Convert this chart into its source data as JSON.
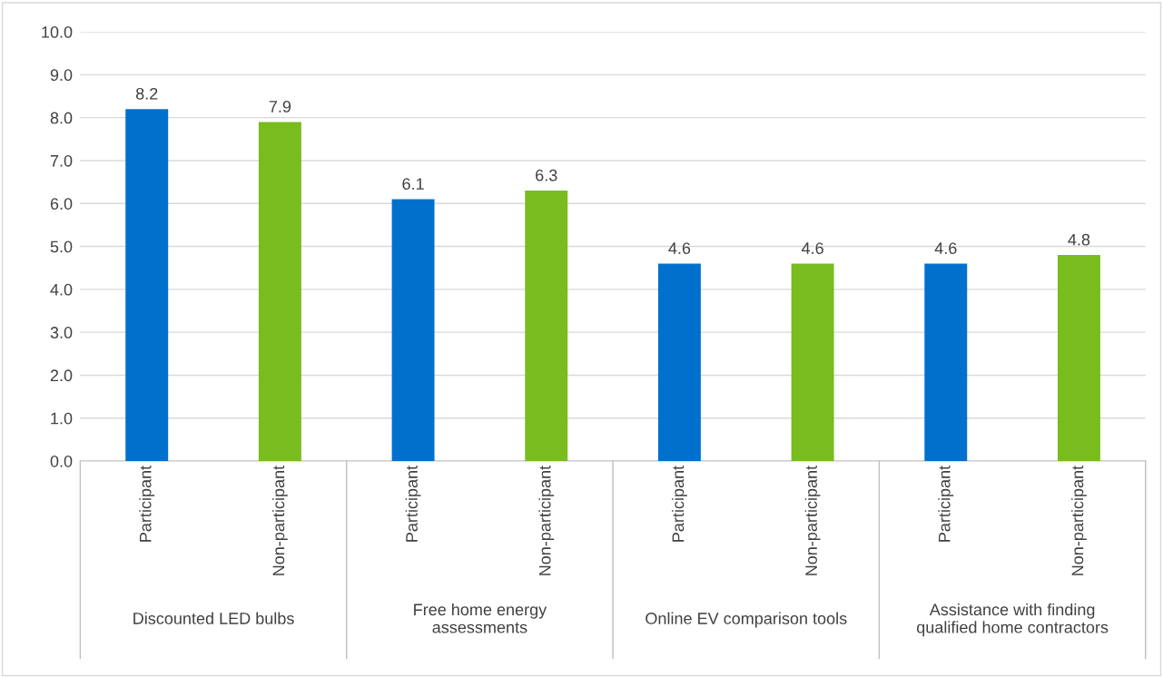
{
  "chart_data": {
    "type": "bar",
    "categories": [
      "Participant",
      "Non-participant",
      "Participant",
      "Non-participant",
      "Participant",
      "Non-participant",
      "Participant",
      "Non-participant"
    ],
    "values": [
      8.2,
      7.9,
      6.1,
      6.3,
      4.6,
      4.6,
      4.6,
      4.8
    ],
    "colors": [
      "#0070cd",
      "#78bc1e",
      "#0070cd",
      "#78bc1e",
      "#0070cd",
      "#78bc1e",
      "#0070cd",
      "#78bc1e"
    ],
    "ylim": [
      0,
      10
    ],
    "yticks": [
      {
        "value": 0,
        "label": "0.0"
      },
      {
        "value": 1,
        "label": "1.0"
      },
      {
        "value": 2,
        "label": "2.0"
      },
      {
        "value": 3,
        "label": "3.0"
      },
      {
        "value": 4,
        "label": "4.0"
      },
      {
        "value": 5,
        "label": "5.0"
      },
      {
        "value": 6,
        "label": "6.0"
      },
      {
        "value": 7,
        "label": "7.0"
      },
      {
        "value": 8,
        "label": "8.0"
      },
      {
        "value": 9,
        "label": "9.0"
      },
      {
        "value": 10,
        "label": "10.0"
      }
    ],
    "grid": "y",
    "data_labels": true,
    "annotations": [
      "Discounted LED bulbs",
      "Free home energy\nassessments",
      "Online EV comparison tools",
      "Assistance with finding\nqualified home contractors"
    ]
  }
}
